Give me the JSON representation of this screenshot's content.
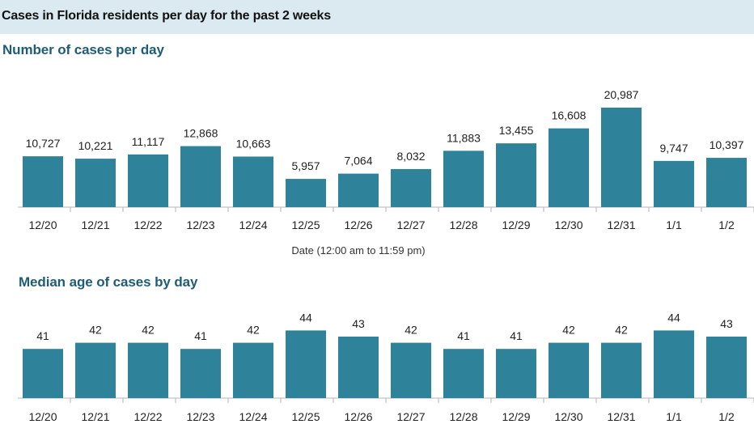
{
  "header": {
    "title": "Cases in Florida residents per day for the past 2 weeks"
  },
  "colors": {
    "bar": "#2e8299",
    "axis": "#b5b5b5",
    "header_bg": "#dbe9f1",
    "section_title": "#1f5c75"
  },
  "chart_data": [
    {
      "type": "bar",
      "title": "Number of cases per day",
      "xlabel": "Date (12:00 am to 11:59 pm)",
      "ylabel": "",
      "categories": [
        "12/20",
        "12/21",
        "12/22",
        "12/23",
        "12/24",
        "12/25",
        "12/26",
        "12/27",
        "12/28",
        "12/29",
        "12/30",
        "12/31",
        "1/1",
        "1/2"
      ],
      "values": [
        10727,
        10221,
        11117,
        12868,
        10663,
        5957,
        7064,
        8032,
        11883,
        13455,
        16608,
        20987,
        9747,
        10397
      ],
      "value_labels": [
        "10,727",
        "10,221",
        "11,117",
        "12,868",
        "10,663",
        "5,957",
        "7,064",
        "8,032",
        "11,883",
        "13,455",
        "16,608",
        "20,987",
        "9,747",
        "10,397"
      ],
      "grid": false
    },
    {
      "type": "bar",
      "title": "Median age of cases by day",
      "xlabel": "",
      "ylabel": "",
      "categories": [
        "12/20",
        "12/21",
        "12/22",
        "12/23",
        "12/24",
        "12/25",
        "12/26",
        "12/27",
        "12/28",
        "12/29",
        "12/30",
        "12/31",
        "1/1",
        "1/2"
      ],
      "values": [
        41,
        42,
        42,
        41,
        42,
        44,
        43,
        42,
        41,
        41,
        42,
        42,
        44,
        43
      ],
      "value_labels": [
        "41",
        "42",
        "42",
        "41",
        "42",
        "44",
        "43",
        "42",
        "41",
        "41",
        "42",
        "42",
        "44",
        "43"
      ],
      "grid": false
    }
  ]
}
